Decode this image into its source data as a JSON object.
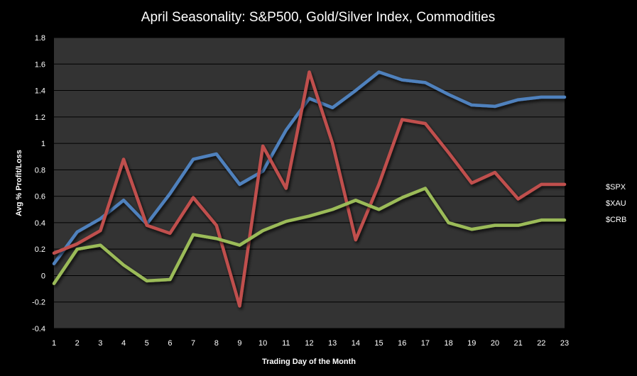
{
  "chart_data": {
    "type": "line",
    "title": "April Seasonality:  S&P500, Gold/Silver  Index, Commodities",
    "xlabel": "Trading Day of the Month",
    "ylabel": "Avg % Profit/Loss",
    "x": [
      1,
      2,
      3,
      4,
      5,
      6,
      7,
      8,
      9,
      10,
      11,
      12,
      13,
      14,
      15,
      16,
      17,
      18,
      19,
      20,
      21,
      22,
      23
    ],
    "x_tick_labels": [
      "1",
      "2",
      "3",
      "4",
      "5",
      "6",
      "7",
      "8",
      "9",
      "10",
      "11",
      "12",
      "13",
      "14",
      "15",
      "16",
      "17",
      "18",
      "19",
      "20",
      "21",
      "22",
      "23"
    ],
    "ylim": [
      -0.4,
      1.8
    ],
    "y_ticks": [
      -0.4,
      -0.2,
      0,
      0.2,
      0.4,
      0.6,
      0.8,
      1,
      1.2,
      1.4,
      1.6,
      1.8
    ],
    "y_tick_labels": [
      "-0.4",
      "-0.2",
      "0",
      "0.2",
      "0.4",
      "0.6",
      "0.8",
      "1",
      "1.2",
      "1.4",
      "1.6",
      "1.8"
    ],
    "grid": "horizontal",
    "legend_position": "right",
    "plot_background": "#333333",
    "background": "#000000",
    "gridline_color": "#000000",
    "series": [
      {
        "name": "$SPX",
        "color": "#4F81BD",
        "values": [
          0.09,
          0.33,
          0.43,
          0.57,
          0.39,
          0.62,
          0.88,
          0.92,
          0.69,
          0.79,
          1.1,
          1.34,
          1.27,
          1.4,
          1.54,
          1.48,
          1.46,
          1.37,
          1.29,
          1.28,
          1.33,
          1.35,
          1.35
        ]
      },
      {
        "name": "$XAU",
        "color": "#C0504D",
        "values": [
          0.17,
          0.24,
          0.34,
          0.88,
          0.38,
          0.32,
          0.59,
          0.38,
          -0.23,
          0.98,
          0.66,
          1.54,
          1.0,
          0.27,
          0.69,
          1.18,
          1.15,
          0.93,
          0.7,
          0.78,
          0.58,
          0.69,
          0.69
        ]
      },
      {
        "name": "$CRB",
        "color": "#9BBB59",
        "values": [
          -0.06,
          0.2,
          0.23,
          0.08,
          -0.04,
          -0.03,
          0.31,
          0.28,
          0.23,
          0.34,
          0.41,
          0.45,
          0.5,
          0.57,
          0.5,
          0.59,
          0.66,
          0.4,
          0.35,
          0.38,
          0.38,
          0.42,
          0.42
        ]
      }
    ]
  }
}
